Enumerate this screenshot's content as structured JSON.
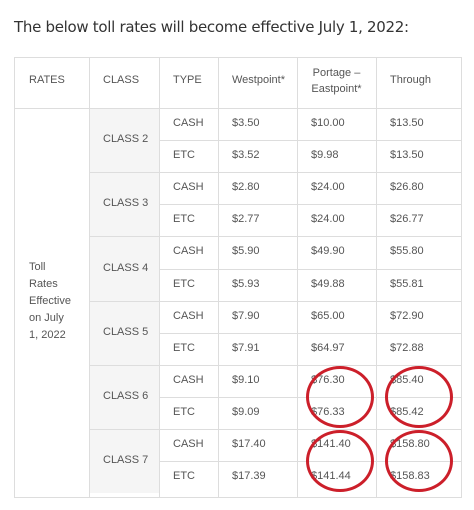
{
  "heading": "The below toll rates will become effective July 1, 2022:",
  "headers": {
    "rates": "RATES",
    "class": "CLASS",
    "type": "TYPE",
    "westpoint": "Westpoint*",
    "portage_line1": "Portage –",
    "portage_line2": "Eastpoint*",
    "through": "Through"
  },
  "rates_label_lines": [
    "Toll",
    "Rates",
    "Effective",
    "on July",
    "1, 2022"
  ],
  "classes": [
    {
      "name": "CLASS 2",
      "rows": [
        {
          "type": "CASH",
          "westpoint": "$3.50",
          "portage": "$10.00",
          "through": "$13.50"
        },
        {
          "type": "ETC",
          "westpoint": "$3.52",
          "portage": "$9.98",
          "through": "$13.50"
        }
      ]
    },
    {
      "name": "CLASS 3",
      "rows": [
        {
          "type": "CASH",
          "westpoint": "$2.80",
          "portage": "$24.00",
          "through": "$26.80"
        },
        {
          "type": "ETC",
          "westpoint": "$2.77",
          "portage": "$24.00",
          "through": "$26.77"
        }
      ]
    },
    {
      "name": "CLASS 4",
      "rows": [
        {
          "type": "CASH",
          "westpoint": "$5.90",
          "portage": "$49.90",
          "through": "$55.80"
        },
        {
          "type": "ETC",
          "westpoint": "$5.93",
          "portage": "$49.88",
          "through": "$55.81"
        }
      ]
    },
    {
      "name": "CLASS 5",
      "rows": [
        {
          "type": "CASH",
          "westpoint": "$7.90",
          "portage": "$65.00",
          "through": "$72.90"
        },
        {
          "type": "ETC",
          "westpoint": "$7.91",
          "portage": "$64.97",
          "through": "$72.88"
        }
      ]
    },
    {
      "name": "CLASS 6",
      "rows": [
        {
          "type": "CASH",
          "westpoint": "$9.10",
          "portage": "$76.30",
          "through": "$85.40"
        },
        {
          "type": "ETC",
          "westpoint": "$9.09",
          "portage": "$76.33",
          "through": "$85.42"
        }
      ]
    },
    {
      "name": "CLASS 7",
      "rows": [
        {
          "type": "CASH",
          "westpoint": "$17.40",
          "portage": "$141.40",
          "through": "$158.80"
        },
        {
          "type": "ETC",
          "westpoint": "$17.39",
          "portage": "$141.44",
          "through": "$158.83"
        }
      ]
    }
  ],
  "highlight_color": "#cc1f2a",
  "highlighted_classes": [
    "CLASS 6",
    "CLASS 7"
  ]
}
